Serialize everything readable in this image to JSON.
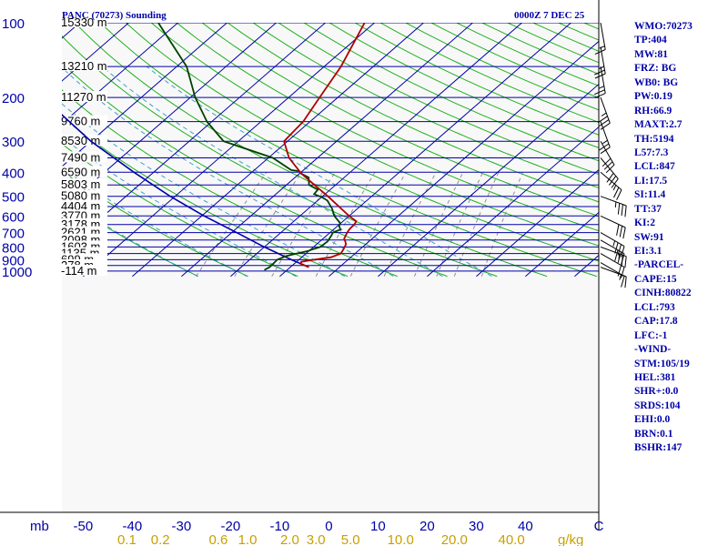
{
  "title": "PANC (70273) Sounding",
  "valid_time": "0000Z  7 DEC 25",
  "colors": {
    "isobar": "#0000a8",
    "isotherm": "#0000a8",
    "dry_adiabat": "#20b020",
    "moist_adiabat": "#40a0c8",
    "mixing_ratio": "#909090",
    "temperature": "#b00000",
    "dewpoint": "#004000",
    "parcel": "#0000a8",
    "wind": "#000000",
    "text": "#0000a8",
    "label": "#c8a000",
    "background": "#f8f8f8"
  },
  "stats": [
    "WMO:70273",
    "TP:404",
    "MW:81",
    "FRZ: BG",
    "WB0: BG",
    "PW:0.19",
    "RH:66.9",
    "MAXT:2.7",
    "TH:5194",
    "L57:7.3",
    "LCL:847",
    "LI:17.5",
    "SI:11.4",
    "TT:37",
    "KI:2",
    "SW:91",
    "EI:3.1",
    "-PARCEL-",
    "CAPE:15",
    "CINH:80822",
    "LCL:793",
    "CAP:17.8",
    "LFC:-1",
    "-WIND-",
    "STM:105/19",
    "HEL:381",
    "SHR+:0.0",
    "SRDS:104",
    "EHI:0.0",
    "BRN:0.1",
    "BSHR:147"
  ],
  "chart_data": {
    "type": "skew-t log-p sounding",
    "title": "PANC (70273) Sounding",
    "time": "0000Z  7 DEC 25",
    "ylabel": "mb",
    "xlabel": "C",
    "mixing_ratio_unit": "g/kg",
    "pressure_levels": [
      100,
      200,
      300,
      400,
      500,
      600,
      700,
      800,
      900,
      1000
    ],
    "pressure_range": [
      100,
      1050
    ],
    "temperature_ticks": [
      -50,
      -40,
      -30,
      -20,
      -10,
      0,
      10,
      20,
      30,
      40
    ],
    "isotherm_range": [
      -120,
      60
    ],
    "mixing_ratio_ticks": [
      "0.1",
      "0.2",
      "0.6",
      "1.0",
      "2.0",
      "3.0",
      "5.0",
      "10.0",
      "20.0",
      "40.0"
    ],
    "mixing_ratio_values": [
      0.1,
      0.2,
      0.6,
      1.0,
      2.0,
      3.0,
      5.0,
      10.0,
      20.0,
      40.0
    ],
    "heights": [
      {
        "p": 100,
        "label": "15330 m"
      },
      {
        "p": 150,
        "label": "13210 m"
      },
      {
        "p": 200,
        "label": "11270 m"
      },
      {
        "p": 250,
        "label": "9760 m"
      },
      {
        "p": 300,
        "label": "8530 m"
      },
      {
        "p": 350,
        "label": "7490 m"
      },
      {
        "p": 400,
        "label": "6590 m"
      },
      {
        "p": 450,
        "label": "5803 m"
      },
      {
        "p": 500,
        "label": "5080 m"
      },
      {
        "p": 550,
        "label": "4404 m"
      },
      {
        "p": 600,
        "label": "3770 m"
      },
      {
        "p": 650,
        "label": "3178 m"
      },
      {
        "p": 700,
        "label": "2621 m"
      },
      {
        "p": 750,
        "label": "2098 m"
      },
      {
        "p": 800,
        "label": "1603 m"
      },
      {
        "p": 850,
        "label": "1135 m"
      },
      {
        "p": 900,
        "label": "699 m"
      },
      {
        "p": 950,
        "label": "278 m"
      },
      {
        "p": 1000,
        "label": "-114 m"
      }
    ],
    "temperature_profile": [
      {
        "p": 965,
        "t": -6.2
      },
      {
        "p": 935,
        "t": -8.6
      },
      {
        "p": 918,
        "t": -9.0
      },
      {
        "p": 900,
        "t": -6.9
      },
      {
        "p": 880,
        "t": -4.0
      },
      {
        "p": 850,
        "t": -2.9
      },
      {
        "p": 820,
        "t": -3.3
      },
      {
        "p": 780,
        "t": -4.0
      },
      {
        "p": 760,
        "t": -4.8
      },
      {
        "p": 740,
        "t": -5.7
      },
      {
        "p": 700,
        "t": -6.5
      },
      {
        "p": 680,
        "t": -6.8
      },
      {
        "p": 645,
        "t": -7.0
      },
      {
        "p": 630,
        "t": -7.3
      },
      {
        "p": 600,
        "t": -10.0
      },
      {
        "p": 500,
        "t": -18.9
      },
      {
        "p": 450,
        "t": -24.3
      },
      {
        "p": 404,
        "t": -29.7
      },
      {
        "p": 350,
        "t": -35.8
      },
      {
        "p": 300,
        "t": -40.7
      },
      {
        "p": 250,
        "t": -41.4
      },
      {
        "p": 200,
        "t": -43.7
      },
      {
        "p": 150,
        "t": -46.6
      },
      {
        "p": 100,
        "t": -52.0
      }
    ],
    "dewpoint_profile": [
      {
        "p": 990,
        "t": -14.6
      },
      {
        "p": 965,
        "t": -14.2
      },
      {
        "p": 930,
        "t": -14.3
      },
      {
        "p": 900,
        "t": -14.4
      },
      {
        "p": 870,
        "t": -13.4
      },
      {
        "p": 850,
        "t": -11.9
      },
      {
        "p": 830,
        "t": -10.1
      },
      {
        "p": 820,
        "t": -9.8
      },
      {
        "p": 800,
        "t": -8.6
      },
      {
        "p": 760,
        "t": -8.4
      },
      {
        "p": 720,
        "t": -9.0
      },
      {
        "p": 700,
        "t": -9.4
      },
      {
        "p": 680,
        "t": -8.6
      },
      {
        "p": 660,
        "t": -9.6
      },
      {
        "p": 640,
        "t": -10.2
      },
      {
        "p": 600,
        "t": -13.0
      },
      {
        "p": 560,
        "t": -15.2
      },
      {
        "p": 540,
        "t": -16.6
      },
      {
        "p": 520,
        "t": -18.0
      },
      {
        "p": 505,
        "t": -19.8
      },
      {
        "p": 490,
        "t": -22.2
      },
      {
        "p": 470,
        "t": -22.5
      },
      {
        "p": 450,
        "t": -25.4
      },
      {
        "p": 420,
        "t": -27.2
      },
      {
        "p": 404,
        "t": -29.8
      },
      {
        "p": 396,
        "t": -30.6
      },
      {
        "p": 392,
        "t": -32.5
      },
      {
        "p": 350,
        "t": -39.1
      },
      {
        "p": 300,
        "t": -53.0
      },
      {
        "p": 250,
        "t": -61.0
      },
      {
        "p": 200,
        "t": -69.0
      },
      {
        "p": 150,
        "t": -78.0
      },
      {
        "p": 100,
        "t": -94.0
      }
    ],
    "parcel_trace": [
      {
        "p": 965,
        "t": -6.2
      },
      {
        "p": 900,
        "t": -11.5
      },
      {
        "p": 800,
        "t": -20.0
      },
      {
        "p": 700,
        "t": -29.0
      },
      {
        "p": 600,
        "t": -39.5
      },
      {
        "p": 500,
        "t": -51.0
      },
      {
        "p": 400,
        "t": -64.0
      },
      {
        "p": 300,
        "t": -80.0
      },
      {
        "p": 200,
        "t": -100.0
      },
      {
        "p": 100,
        "t": -130.0
      }
    ],
    "wind_barbs": [
      {
        "p": 965,
        "dir": 110,
        "kt": 10
      },
      {
        "p": 925,
        "dir": 120,
        "kt": 15
      },
      {
        "p": 850,
        "dir": 120,
        "kt": 20
      },
      {
        "p": 800,
        "dir": 110,
        "kt": 25
      },
      {
        "p": 750,
        "dir": 120,
        "kt": 30
      },
      {
        "p": 700,
        "dir": 120,
        "kt": 35
      },
      {
        "p": 600,
        "dir": 115,
        "kt": 30
      },
      {
        "p": 500,
        "dir": 110,
        "kt": 35
      },
      {
        "p": 400,
        "dir": 130,
        "kt": 25
      },
      {
        "p": 350,
        "dir": 140,
        "kt": 30
      },
      {
        "p": 300,
        "dir": 150,
        "kt": 30
      },
      {
        "p": 250,
        "dir": 160,
        "kt": 25
      },
      {
        "p": 200,
        "dir": 160,
        "kt": 35
      },
      {
        "p": 150,
        "dir": 170,
        "kt": 25
      },
      {
        "p": 125,
        "dir": 170,
        "kt": 25
      },
      {
        "p": 100,
        "dir": 170,
        "kt": 15
      }
    ]
  }
}
